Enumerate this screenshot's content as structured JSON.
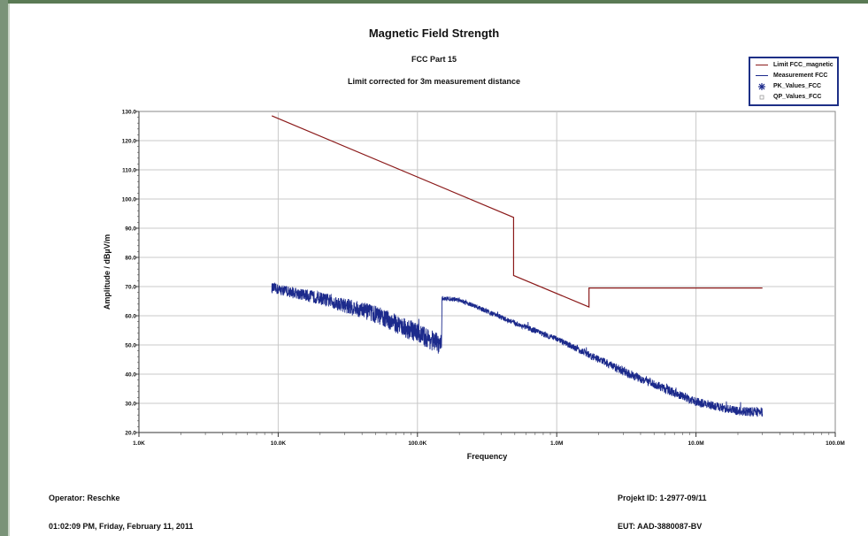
{
  "chart_data": {
    "type": "line",
    "title": "Magnetic Field Strength",
    "subtitle": "FCC Part 15",
    "subtitle2": "Limit corrected for 3m measurement distance",
    "xlabel": "Frequency",
    "ylabel": "Amplitude / dBµV/m",
    "x_scale": "log",
    "xlim": [
      1000,
      100000000
    ],
    "ylim": [
      20,
      130
    ],
    "x_ticks": [
      {
        "value": 1000,
        "label": "1.0K"
      },
      {
        "value": 10000,
        "label": "10.0K"
      },
      {
        "value": 100000,
        "label": "100.0K"
      },
      {
        "value": 1000000,
        "label": "1.0M"
      },
      {
        "value": 10000000,
        "label": "10.0M"
      },
      {
        "value": 100000000,
        "label": "100.0M"
      }
    ],
    "y_ticks": [
      {
        "value": 20,
        "label": "20.0"
      },
      {
        "value": 30,
        "label": "30.0"
      },
      {
        "value": 40,
        "label": "40.0"
      },
      {
        "value": 50,
        "label": "50.0"
      },
      {
        "value": 60,
        "label": "60.0"
      },
      {
        "value": 70,
        "label": "70.0"
      },
      {
        "value": 80,
        "label": "80.0"
      },
      {
        "value": 90,
        "label": "90.0"
      },
      {
        "value": 100,
        "label": "100.0"
      },
      {
        "value": 110,
        "label": "110.0"
      },
      {
        "value": 120,
        "label": "120.0"
      },
      {
        "value": 130,
        "label": "130.0"
      }
    ],
    "grid": true,
    "legend_position": "top-right",
    "series": [
      {
        "name": "Limit FCC_magnetic",
        "color": "#8b1a1a",
        "points": [
          [
            9000,
            128.5
          ],
          [
            490000,
            93.7
          ],
          [
            490000,
            73.8
          ],
          [
            1705000,
            63.0
          ],
          [
            1705000,
            69.5
          ],
          [
            30000000,
            69.5
          ]
        ]
      },
      {
        "name": "Measurement FCC",
        "color": "#1c2a8c",
        "envelope": [
          {
            "x": 9000,
            "mean": 69.5,
            "spread": 1.8
          },
          {
            "x": 20000,
            "mean": 66.0,
            "spread": 2.2
          },
          {
            "x": 50000,
            "mean": 60.5,
            "spread": 3.0
          },
          {
            "x": 100000,
            "mean": 54.0,
            "spread": 3.5
          },
          {
            "x": 149000,
            "mean": 50.0,
            "spread": 3.5
          },
          {
            "x": 150000,
            "mean": 66.0,
            "spread": 0.8
          },
          {
            "x": 200000,
            "mean": 65.5,
            "spread": 0.8
          },
          {
            "x": 500000,
            "mean": 57.5,
            "spread": 0.9
          },
          {
            "x": 1000000,
            "mean": 52.0,
            "spread": 1.0
          },
          {
            "x": 3000000,
            "mean": 41.0,
            "spread": 1.5
          },
          {
            "x": 10000000,
            "mean": 30.5,
            "spread": 1.5
          },
          {
            "x": 20000000,
            "mean": 27.3,
            "spread": 1.5
          },
          {
            "x": 30000000,
            "mean": 27.0,
            "spread": 1.8
          }
        ]
      },
      {
        "name": "PK_Values_FCC",
        "color": "#1c2a8c",
        "marker": "asterisk",
        "points": []
      },
      {
        "name": "QP_Values_FCC",
        "color": "#999999",
        "marker": "square",
        "points": []
      }
    ]
  },
  "legend": {
    "items": [
      {
        "label": "Limit FCC_magnetic",
        "color": "#8b1a1a",
        "symbol": "line"
      },
      {
        "label": "Measurement FCC",
        "color": "#1c2a8c",
        "symbol": "line"
      },
      {
        "label": "PK_Values_FCC",
        "color": "#1c2a8c",
        "symbol": "asterisk"
      },
      {
        "label": "QP_Values_FCC",
        "color": "#999999",
        "symbol": "square"
      }
    ]
  },
  "footer": {
    "operator": "Operator: Reschke",
    "timestamp": "01:02:09 PM, Friday, February 11, 2011",
    "project_id": "Projekt ID: 1-2977-09/11",
    "eut": "EUT: AAD-3880087-BV"
  }
}
